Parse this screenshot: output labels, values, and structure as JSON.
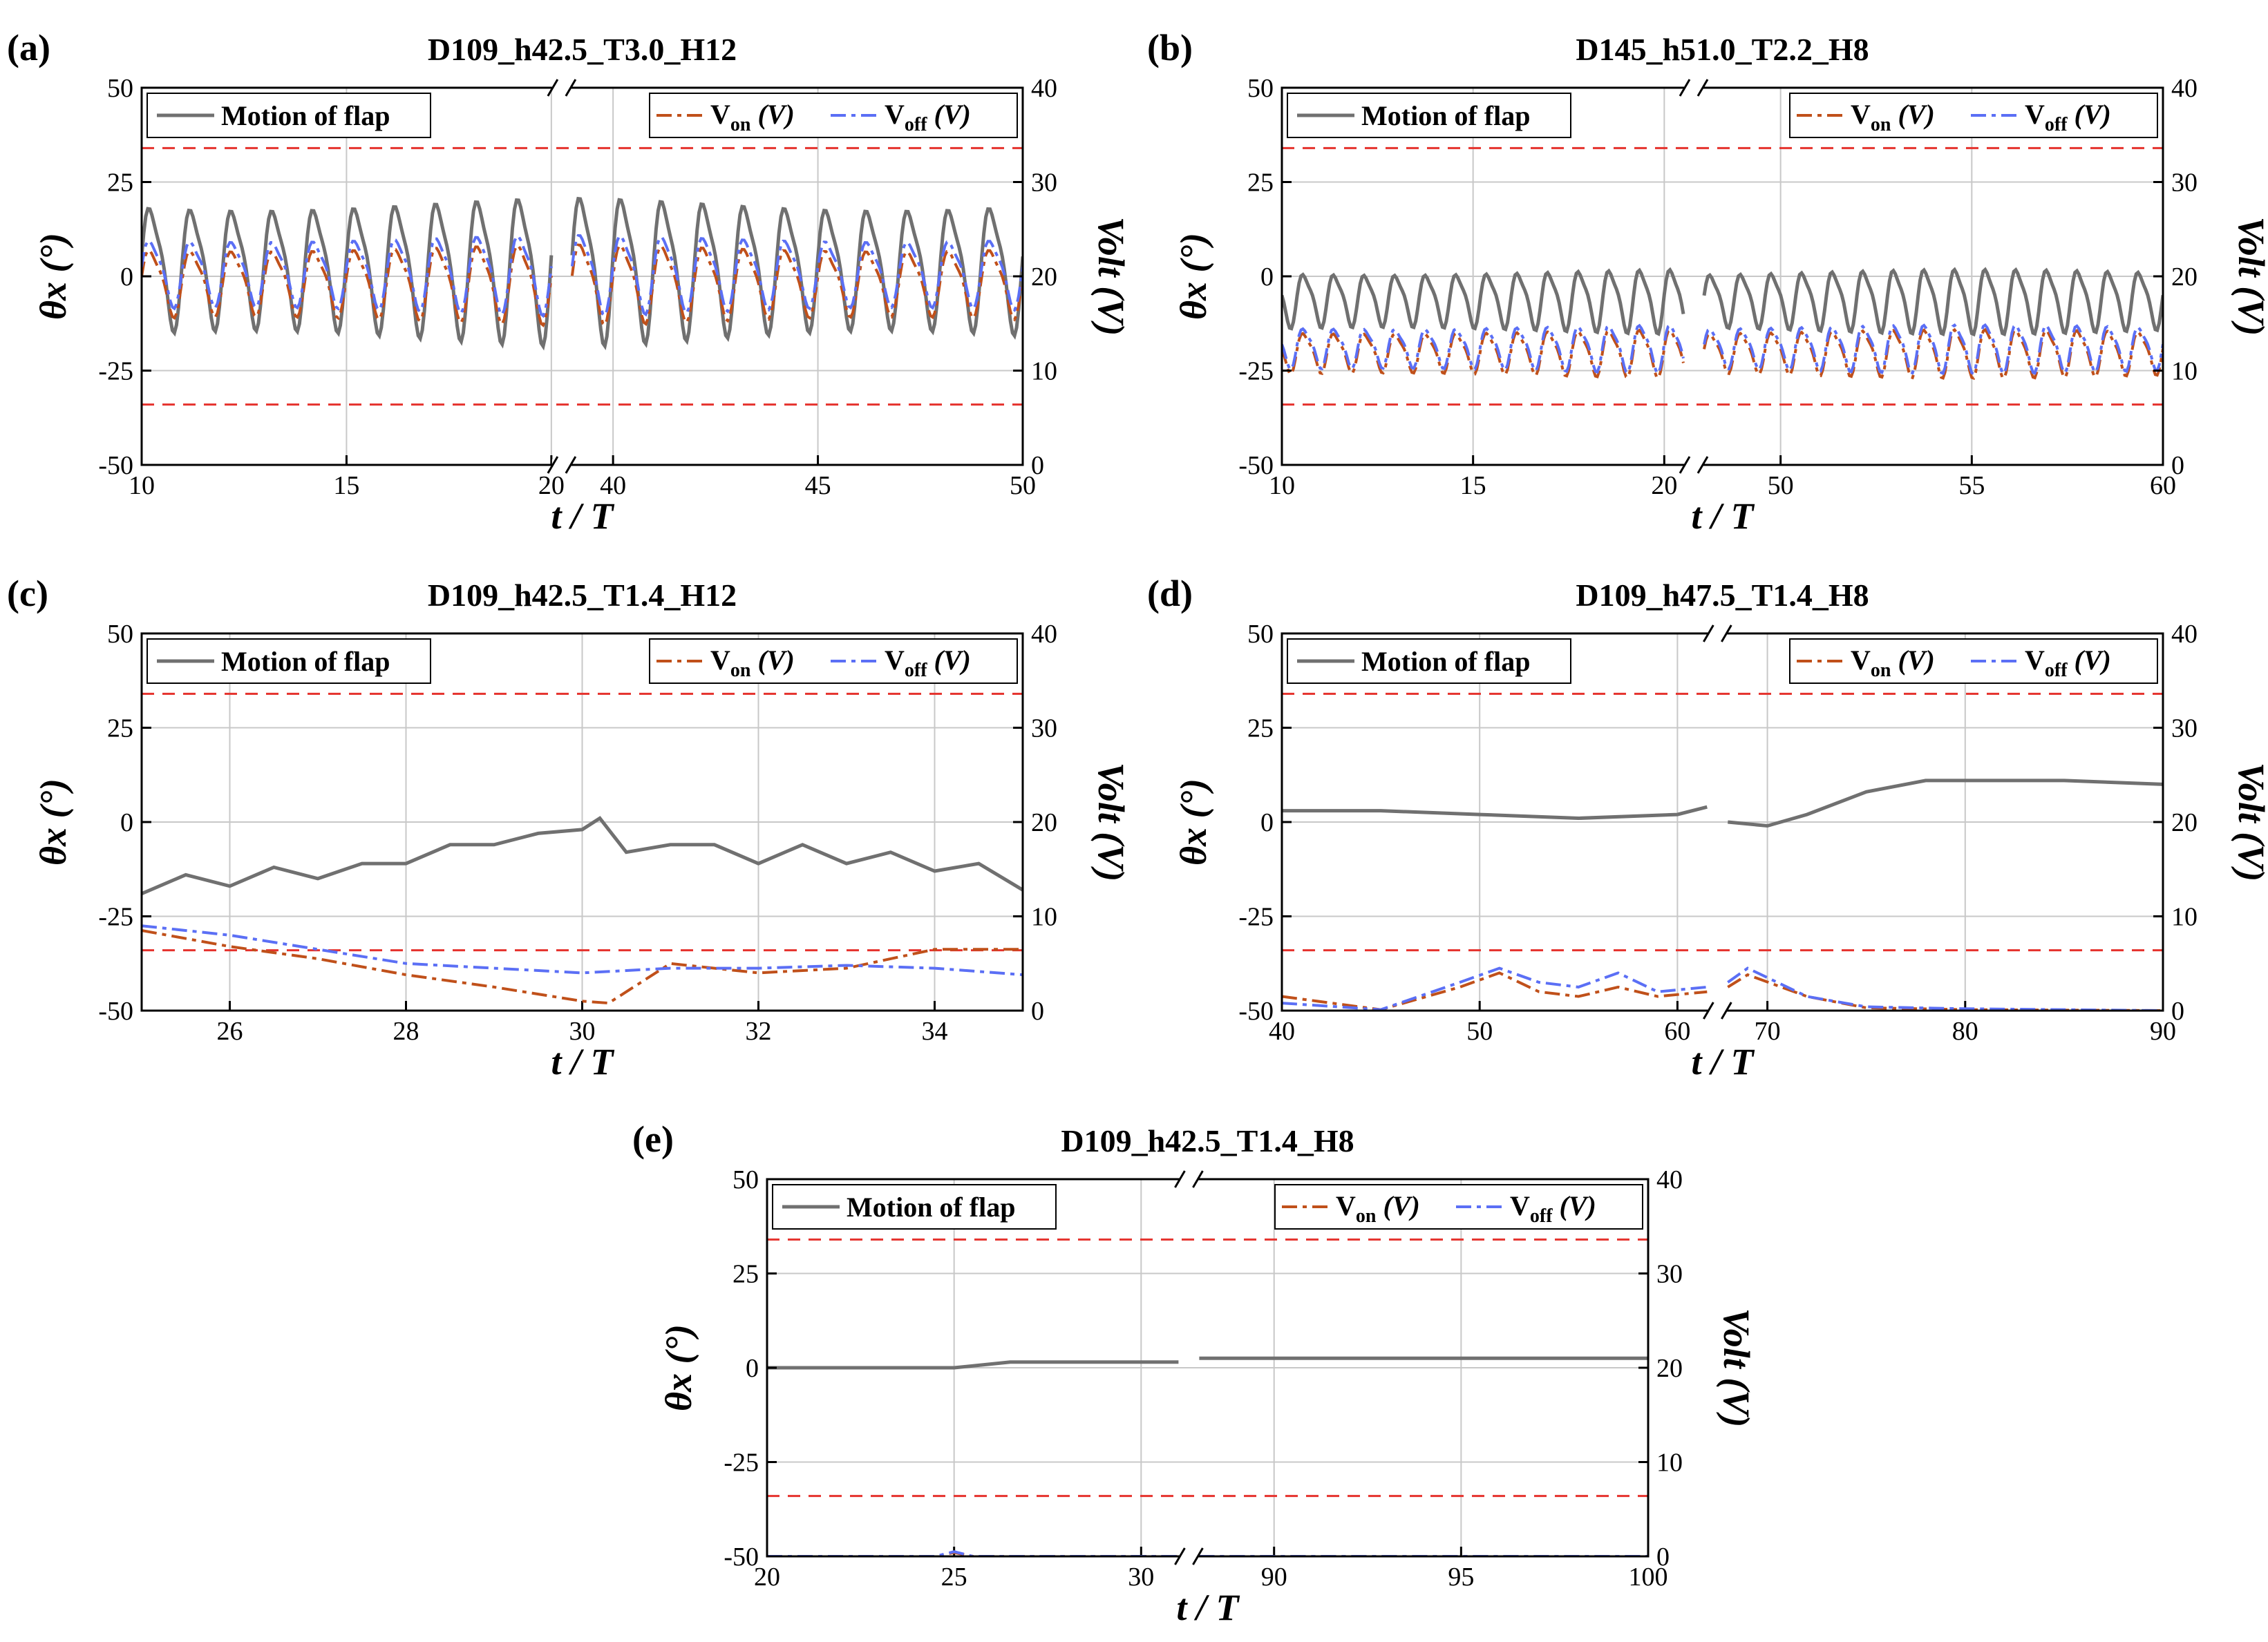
{
  "figure": {
    "xlabel": "t / T",
    "ylabel_left": "θx (°)",
    "ylabel_right": "Volt (V)",
    "legend": {
      "motion": "Motion of flap",
      "von": "Von (V)",
      "voff": "Voff (V)"
    },
    "colors": {
      "motion": "#707070",
      "von": "#c0501a",
      "voff": "#5b6ff5",
      "threshold": "#e5322d",
      "grid": "#c8c8c8"
    },
    "left_ticks": [
      "50",
      "25",
      "0",
      "-25",
      "-50"
    ],
    "right_ticks": [
      "40",
      "30",
      "20",
      "10",
      "0"
    ]
  },
  "chart_data": [
    {
      "panel": "(a)",
      "type": "line",
      "title": "D109_h42.5_T3.0_H12",
      "xlabel": "t / T",
      "ylabel": "θx (°)",
      "y2label": "Volt (V)",
      "ylim": [
        -50,
        50
      ],
      "y2lim": [
        0,
        40
      ],
      "threshold_deg": [
        34,
        -34
      ],
      "broken_x_axis": true,
      "segments": [
        {
          "xlim": [
            10,
            20
          ],
          "xticks": [
            "10",
            "15",
            "20"
          ]
        },
        {
          "xlim": [
            39,
            50
          ],
          "xticks": [
            "40",
            "45",
            "50"
          ]
        }
      ],
      "series": [
        {
          "name": "Motion of flap",
          "axis": "left",
          "shape": "oscillation",
          "mean": 3,
          "amplitude": 23,
          "period": 1.0
        },
        {
          "name": "Von (V)",
          "axis": "right",
          "shape": "oscillation",
          "mean": 19.5,
          "amplitude": 5,
          "period": 1.0
        },
        {
          "name": "Voff (V)",
          "axis": "right",
          "shape": "oscillation",
          "mean": 20.5,
          "amplitude": 5,
          "period": 1.0
        }
      ]
    },
    {
      "panel": "(b)",
      "type": "line",
      "title": "D145_h51.0_T2.2_H8",
      "xlabel": "t / T",
      "ylabel": "θx (°)",
      "y2label": "Volt (V)",
      "ylim": [
        -50,
        50
      ],
      "y2lim": [
        0,
        40
      ],
      "threshold_deg": [
        34,
        -34
      ],
      "broken_x_axis": true,
      "segments": [
        {
          "xlim": [
            10,
            20.5
          ],
          "xticks": [
            "10",
            "15",
            "20"
          ]
        },
        {
          "xlim": [
            48,
            60
          ],
          "xticks": [
            "50",
            "55",
            "60"
          ]
        }
      ],
      "series": [
        {
          "name": "Motion of flap",
          "axis": "left",
          "shape": "oscillation",
          "mean": -6,
          "amplitude": 10,
          "period": 0.8
        },
        {
          "name": "Von (V)",
          "axis": "right",
          "shape": "oscillation",
          "mean": 12,
          "amplitude": 3,
          "period": 0.8
        },
        {
          "name": "Voff (V)",
          "axis": "right",
          "shape": "oscillation",
          "mean": 12.5,
          "amplitude": 3,
          "period": 0.8
        }
      ]
    },
    {
      "panel": "(c)",
      "type": "line",
      "title": "D109_h42.5_T1.4_H12",
      "xlabel": "t / T",
      "ylabel": "θx (°)",
      "y2label": "Volt (V)",
      "ylim": [
        -50,
        50
      ],
      "y2lim": [
        0,
        40
      ],
      "threshold_deg": [
        34,
        -34
      ],
      "broken_x_axis": false,
      "segments": [
        {
          "xlim": [
            25,
            35
          ],
          "xticks": [
            "26",
            "28",
            "30",
            "32",
            "34"
          ]
        }
      ],
      "series": [
        {
          "name": "Motion of flap",
          "axis": "left",
          "x": [
            25,
            25.5,
            26,
            26.5,
            27,
            27.5,
            28,
            28.5,
            29,
            29.5,
            30,
            30.2,
            30.5,
            31,
            31.5,
            32,
            32.5,
            33,
            33.5,
            34,
            34.5,
            35
          ],
          "y": [
            -19,
            -14,
            -17,
            -12,
            -15,
            -11,
            -11,
            -6,
            -6,
            -3,
            -2,
            1,
            -8,
            -6,
            -6,
            -11,
            -6,
            -11,
            -8,
            -13,
            -11,
            -18
          ]
        },
        {
          "name": "Von (V)",
          "axis": "right",
          "x": [
            25,
            26,
            27,
            28,
            29,
            30,
            30.3,
            31,
            32,
            33,
            34,
            35
          ],
          "y": [
            8.5,
            6.8,
            5.5,
            3.8,
            2.5,
            1.0,
            0.8,
            5.0,
            4.0,
            4.5,
            6.5,
            6.5
          ]
        },
        {
          "name": "Voff (V)",
          "axis": "right",
          "x": [
            25,
            26,
            27,
            28,
            29,
            30,
            31,
            32,
            33,
            34,
            35
          ],
          "y": [
            9,
            8,
            6.5,
            5,
            4.5,
            4,
            4.5,
            4.5,
            4.8,
            4.5,
            3.8
          ]
        }
      ]
    },
    {
      "panel": "(d)",
      "type": "line",
      "title": "D109_h47.5_T1.4_H8",
      "xlabel": "t / T",
      "ylabel": "θx (°)",
      "y2label": "Volt (V)",
      "ylim": [
        -50,
        50
      ],
      "y2lim": [
        0,
        40
      ],
      "threshold_deg": [
        34,
        -34
      ],
      "broken_x_axis": true,
      "segments": [
        {
          "xlim": [
            40,
            61.5
          ],
          "xticks": [
            "40",
            "50",
            "60"
          ]
        },
        {
          "xlim": [
            68,
            90
          ],
          "xticks": [
            "70",
            "80",
            "90"
          ]
        }
      ],
      "series": [
        {
          "name": "Motion of flap",
          "axis": "left",
          "x": [
            40,
            45,
            50,
            55,
            60,
            61.5,
            68,
            70,
            72,
            75,
            78,
            85,
            90
          ],
          "y": [
            3,
            3,
            2,
            1,
            2,
            4,
            0,
            -1,
            2,
            8,
            11,
            11,
            10
          ]
        },
        {
          "name": "Von (V)",
          "axis": "right",
          "x": [
            40,
            45,
            49,
            51,
            53,
            55,
            57,
            59,
            61.5,
            68,
            69,
            72,
            75,
            80,
            90
          ],
          "y": [
            1.5,
            0.1,
            2.5,
            4.0,
            2.0,
            1.5,
            2.5,
            1.5,
            2.0,
            2.5,
            3.8,
            1.5,
            0.3,
            0.1,
            0
          ]
        },
        {
          "name": "Voff (V)",
          "axis": "right",
          "x": [
            40,
            45,
            49,
            51,
            53,
            55,
            57,
            59,
            61.5,
            68,
            69,
            72,
            75,
            80,
            90
          ],
          "y": [
            0.8,
            0.1,
            3.0,
            4.5,
            3.0,
            2.5,
            4.0,
            2.0,
            2.5,
            3.0,
            4.5,
            1.5,
            0.4,
            0.2,
            0
          ]
        }
      ]
    },
    {
      "panel": "(e)",
      "type": "line",
      "title": "D109_h42.5_T1.4_H8",
      "xlabel": "t / T",
      "ylabel": "θx (°)",
      "y2label": "Volt (V)",
      "ylim": [
        -50,
        50
      ],
      "y2lim": [
        0,
        40
      ],
      "threshold_deg": [
        34,
        -34
      ],
      "broken_x_axis": true,
      "segments": [
        {
          "xlim": [
            20,
            31
          ],
          "xticks": [
            "20",
            "25",
            "30"
          ]
        },
        {
          "xlim": [
            88,
            100
          ],
          "xticks": [
            "90",
            "95",
            "100"
          ]
        }
      ],
      "series": [
        {
          "name": "Motion of flap",
          "axis": "left",
          "x": [
            20,
            25,
            26.5,
            31,
            88,
            100
          ],
          "y": [
            0,
            0,
            1.5,
            1.5,
            2.5,
            2.5
          ]
        },
        {
          "name": "Von (V)",
          "axis": "right",
          "x": [
            20,
            24.5,
            25,
            25.5,
            31,
            88,
            100
          ],
          "y": [
            0,
            0,
            0.4,
            0,
            0,
            0,
            0
          ]
        },
        {
          "name": "Voff (V)",
          "axis": "right",
          "x": [
            20,
            24.5,
            25,
            25.5,
            31,
            88,
            100
          ],
          "y": [
            0,
            0,
            0.5,
            0,
            0,
            0,
            0
          ]
        }
      ]
    }
  ]
}
